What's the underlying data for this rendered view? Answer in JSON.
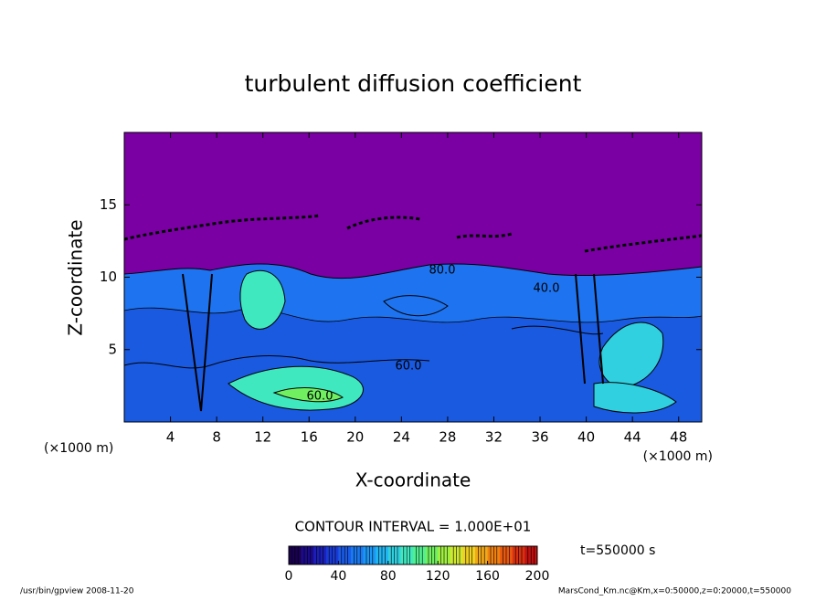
{
  "chart_data": {
    "type": "contour",
    "title": "turbulent diffusion coefficient",
    "xlabel": "X-coordinate",
    "ylabel": "Z-coordinate",
    "xunit": "(×1000 m)",
    "yunit": "(×1000 m)",
    "xlim": [
      0,
      50
    ],
    "ylim": [
      0,
      20
    ],
    "xticks": [
      4,
      8,
      12,
      16,
      20,
      24,
      28,
      32,
      36,
      40,
      44,
      48
    ],
    "yticks": [
      5,
      10,
      15
    ],
    "contour_interval": "CONTOUR INTERVAL = 1.000E+01",
    "contour_labels": [
      "60.0",
      "60.0",
      "80.0",
      "40.0"
    ],
    "colorbar": {
      "clim": [
        0,
        200
      ],
      "ticks": [
        0,
        40,
        80,
        120,
        160,
        200
      ],
      "colormap": [
        "#1a0050",
        "#1c0a8c",
        "#1b1fb8",
        "#1a3ad6",
        "#1a5ae8",
        "#1a78f0",
        "#1a96f5",
        "#20b4f0",
        "#30d0e0",
        "#40e8c0",
        "#50f090",
        "#70f060",
        "#a0f040",
        "#d0e830",
        "#f0d020",
        "#f0a818",
        "#f08010",
        "#e85810",
        "#d83010",
        "#c01010"
      ]
    },
    "time_label": "t=550000 s",
    "footer_left": "/usr/bin/gpview   2008-11-20",
    "footer_right": "MarsCond_Km.nc@Km,x=0:50000,z=0:20000,t=550000"
  }
}
